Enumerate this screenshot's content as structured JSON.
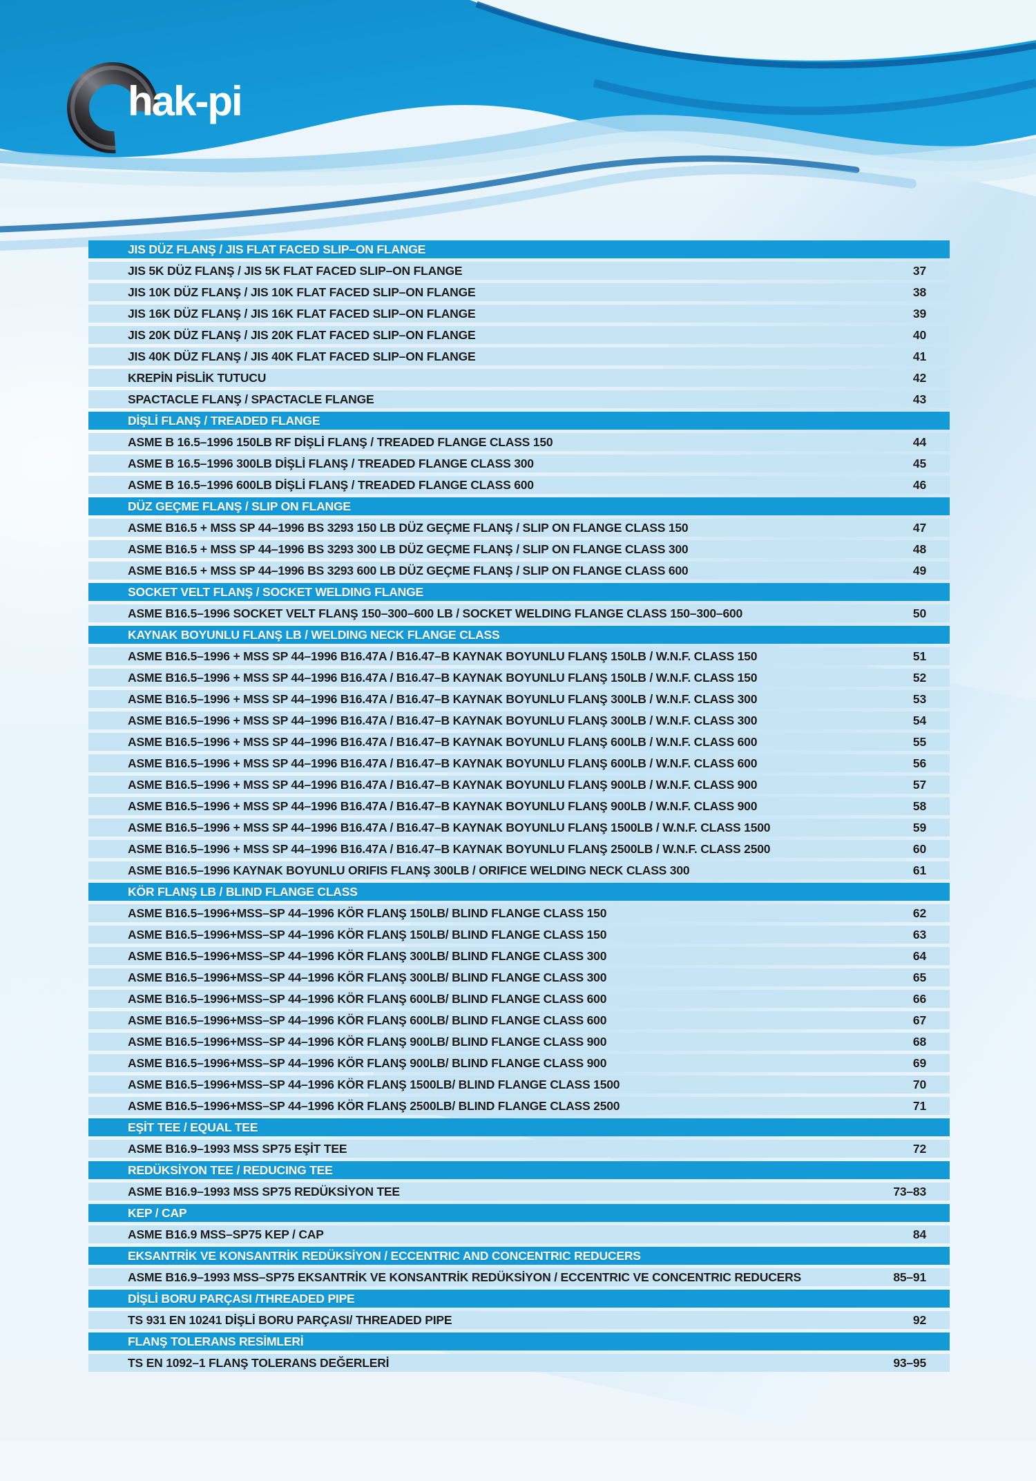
{
  "logo": {
    "brand_text": "hak-pi",
    "mark": "pipe-elbow-c"
  },
  "colors": {
    "banner_blue": "#1598d8",
    "banner_blue_dark": "#0c5d9e",
    "section_header_bar": "#149ad7",
    "item_row_bar": "#c6e4f4",
    "row_text": "#1c1c1c",
    "header_text": "#ffffff"
  },
  "toc": {
    "rows": [
      {
        "type": "header",
        "label": "JIS DÜZ FLANŞ / JIS FLAT FACED SLIP–ON FLANGE"
      },
      {
        "type": "item",
        "label": "JIS 5K DÜZ FLANŞ / JIS 5K FLAT FACED SLIP–ON FLANGE",
        "page": "37"
      },
      {
        "type": "item",
        "label": "JIS 10K DÜZ FLANŞ / JIS 10K FLAT FACED SLIP–ON FLANGE",
        "page": "38"
      },
      {
        "type": "item",
        "label": "JIS 16K DÜZ FLANŞ / JIS 16K FLAT FACED SLIP–ON FLANGE",
        "page": "39"
      },
      {
        "type": "item",
        "label": "JIS 20K DÜZ FLANŞ / JIS 20K FLAT FACED SLIP–ON FLANGE",
        "page": "40"
      },
      {
        "type": "item",
        "label": "JIS 40K DÜZ FLANŞ / JIS 40K FLAT FACED SLIP–ON FLANGE",
        "page": "41"
      },
      {
        "type": "item",
        "label": "KREPİN PİSLİK TUTUCU",
        "page": "42"
      },
      {
        "type": "item",
        "label": "SPACTACLE FLANŞ / SPACTACLE  FLANGE",
        "page": "43"
      },
      {
        "type": "header",
        "label": "DİŞLİ FLANŞ / TREADED FLANGE"
      },
      {
        "type": "item",
        "label": "ASME B 16.5–1996 150LB RF DİŞLİ FLANŞ / TREADED FLANGE CLASS 150",
        "page": "44"
      },
      {
        "type": "item",
        "label": "ASME B 16.5–1996 300LB  DİŞLİ FLANŞ / TREADED FLANGE CLASS 300",
        "page": "45"
      },
      {
        "type": "item",
        "label": "ASME B 16.5–1996 600LB  DİŞLİ FLANŞ / TREADED FLANGE CLASS 600",
        "page": "46"
      },
      {
        "type": "header",
        "label": "DÜZ GEÇME FLANŞ  / SLIP ON FLANGE"
      },
      {
        "type": "item",
        "label": "ASME B16.5 + MSS SP 44–1996 BS 3293 150 LB DÜZ GEÇME FLANŞ / SLIP ON FLANGE CLASS 150",
        "page": "47"
      },
      {
        "type": "item",
        "label": "ASME B16.5 + MSS SP 44–1996 BS 3293 300 LB DÜZ GEÇME FLANŞ / SLIP ON FLANGE CLASS 300",
        "page": "48"
      },
      {
        "type": "item",
        "label": "ASME B16.5 + MSS SP 44–1996 BS 3293 600 LB DÜZ GEÇME FLANŞ / SLIP ON FLANGE CLASS 600",
        "page": "49"
      },
      {
        "type": "header",
        "label": "SOCKET VELT FLANŞ  / SOCKET WELDING FLANGE"
      },
      {
        "type": "item",
        "label": "ASME B16.5–1996 SOCKET VELT FLANŞ 150–300–600 LB / SOCKET WELDING FLANGE CLASS 150–300–600",
        "page": "50"
      },
      {
        "type": "header",
        "label": "KAYNAK BOYUNLU FLANŞ LB / WELDING NECK FLANGE CLASS"
      },
      {
        "type": "item",
        "label": "ASME B16.5–1996 + MSS SP 44–1996 B16.47A / B16.47–B KAYNAK BOYUNLU FLANŞ 150LB / W.N.F. CLASS 150",
        "page": "51"
      },
      {
        "type": "item",
        "label": "ASME B16.5–1996 + MSS SP 44–1996 B16.47A / B16.47–B KAYNAK BOYUNLU FLANŞ 150LB / W.N.F. CLASS 150",
        "page": "52"
      },
      {
        "type": "item",
        "label": "ASME B16.5–1996 + MSS SP 44–1996 B16.47A / B16.47–B KAYNAK BOYUNLU FLANŞ 300LB / W.N.F. CLASS 300",
        "page": "53"
      },
      {
        "type": "item",
        "label": "ASME B16.5–1996 + MSS SP 44–1996 B16.47A / B16.47–B KAYNAK BOYUNLU FLANŞ 300LB / W.N.F. CLASS 300",
        "page": "54"
      },
      {
        "type": "item",
        "label": "ASME B16.5–1996 + MSS SP 44–1996 B16.47A / B16.47–B KAYNAK BOYUNLU FLANŞ 600LB / W.N.F. CLASS 600",
        "page": "55"
      },
      {
        "type": "item",
        "label": "ASME B16.5–1996 + MSS SP 44–1996 B16.47A / B16.47–B KAYNAK BOYUNLU FLANŞ 600LB / W.N.F. CLASS 600",
        "page": "56"
      },
      {
        "type": "item",
        "label": "ASME B16.5–1996 + MSS SP 44–1996 B16.47A / B16.47–B KAYNAK BOYUNLU FLANŞ 900LB / W.N.F. CLASS 900",
        "page": "57"
      },
      {
        "type": "item",
        "label": "ASME B16.5–1996 + MSS SP 44–1996 B16.47A / B16.47–B KAYNAK BOYUNLU FLANŞ 900LB / W.N.F. CLASS 900",
        "page": "58"
      },
      {
        "type": "item",
        "label": "ASME B16.5–1996 + MSS SP 44–1996 B16.47A / B16.47–B KAYNAK BOYUNLU FLANŞ 1500LB / W.N.F. CLASS 1500",
        "page": "59"
      },
      {
        "type": "item",
        "label": "ASME B16.5–1996 + MSS SP 44–1996 B16.47A / B16.47–B KAYNAK BOYUNLU FLANŞ 2500LB / W.N.F. CLASS 2500",
        "page": "60"
      },
      {
        "type": "item",
        "label": "ASME B16.5–1996 KAYNAK BOYUNLU ORIFIS FLANŞ 300LB / ORIFICE WELDING NECK CLASS 300",
        "page": "61"
      },
      {
        "type": "header",
        "label": "KÖR FLANŞ LB / BLIND FLANGE CLASS"
      },
      {
        "type": "item",
        "label": "ASME B16.5–1996+MSS–SP 44–1996 KÖR FLANŞ 150LB/ BLIND FLANGE CLASS 150",
        "page": "62"
      },
      {
        "type": "item",
        "label": "ASME B16.5–1996+MSS–SP 44–1996 KÖR FLANŞ 150LB/ BLIND FLANGE CLASS 150",
        "page": "63"
      },
      {
        "type": "item",
        "label": "ASME B16.5–1996+MSS–SP 44–1996 KÖR FLANŞ 300LB/ BLIND FLANGE CLASS 300",
        "page": "64"
      },
      {
        "type": "item",
        "label": "ASME B16.5–1996+MSS–SP 44–1996 KÖR FLANŞ 300LB/ BLIND FLANGE CLASS 300",
        "page": "65"
      },
      {
        "type": "item",
        "label": "ASME B16.5–1996+MSS–SP 44–1996 KÖR FLANŞ 600LB/ BLIND FLANGE CLASS 600",
        "page": "66"
      },
      {
        "type": "item",
        "label": "ASME B16.5–1996+MSS–SP 44–1996 KÖR FLANŞ 600LB/ BLIND FLANGE CLASS 600",
        "page": "67"
      },
      {
        "type": "item",
        "label": "ASME B16.5–1996+MSS–SP 44–1996 KÖR FLANŞ 900LB/ BLIND FLANGE CLASS 900",
        "page": "68"
      },
      {
        "type": "item",
        "label": "ASME B16.5–1996+MSS–SP 44–1996 KÖR FLANŞ 900LB/ BLIND FLANGE CLASS 900",
        "page": "69"
      },
      {
        "type": "item",
        "label": "ASME B16.5–1996+MSS–SP 44–1996 KÖR FLANŞ 1500LB/ BLIND FLANGE CLASS 1500",
        "page": "70"
      },
      {
        "type": "item",
        "label": "ASME B16.5–1996+MSS–SP 44–1996 KÖR FLANŞ 2500LB/ BLIND FLANGE CLASS 2500",
        "page": "71"
      },
      {
        "type": "header",
        "label": "EŞİT TEE  /  EQUAL TEE"
      },
      {
        "type": "item",
        "label": "ASME B16.9–1993 MSS SP75 EŞİT TEE",
        "page": "72"
      },
      {
        "type": "header",
        "label": "REDÜKSİYON TEE  /  REDUCING TEE"
      },
      {
        "type": "item",
        "label": "ASME B16.9–1993 MSS SP75 REDÜKSİYON TEE",
        "page": "73–83"
      },
      {
        "type": "header",
        "label": "KEP  /  CAP"
      },
      {
        "type": "item",
        "label": "ASME B16.9 MSS–SP75 KEP / CAP",
        "page": "84"
      },
      {
        "type": "header",
        "label": "EKSANTRİK VE KONSANTRİK REDÜKSİYON / ECCENTRIC AND CONCENTRIC REDUCERS"
      },
      {
        "type": "item",
        "label": "ASME B16.9–1993 MSS–SP75 EKSANTRİK VE KONSANTRİK REDÜKSİYON / ECCENTRIC VE CONCENTRIC REDUCERS",
        "page": "85–91"
      },
      {
        "type": "header",
        "label": "DİŞLİ BORU PARÇASI /THREADED PIPE"
      },
      {
        "type": "item",
        "label": "TS 931 EN 10241 DİŞLİ BORU PARÇASI/ THREADED PIPE",
        "page": "92"
      },
      {
        "type": "header",
        "label": "FLANŞ TOLERANS RESİMLERİ"
      },
      {
        "type": "item",
        "label": "TS EN 1092–1 FLANŞ TOLERANS DEĞERLERİ",
        "page": "93–95"
      }
    ]
  }
}
